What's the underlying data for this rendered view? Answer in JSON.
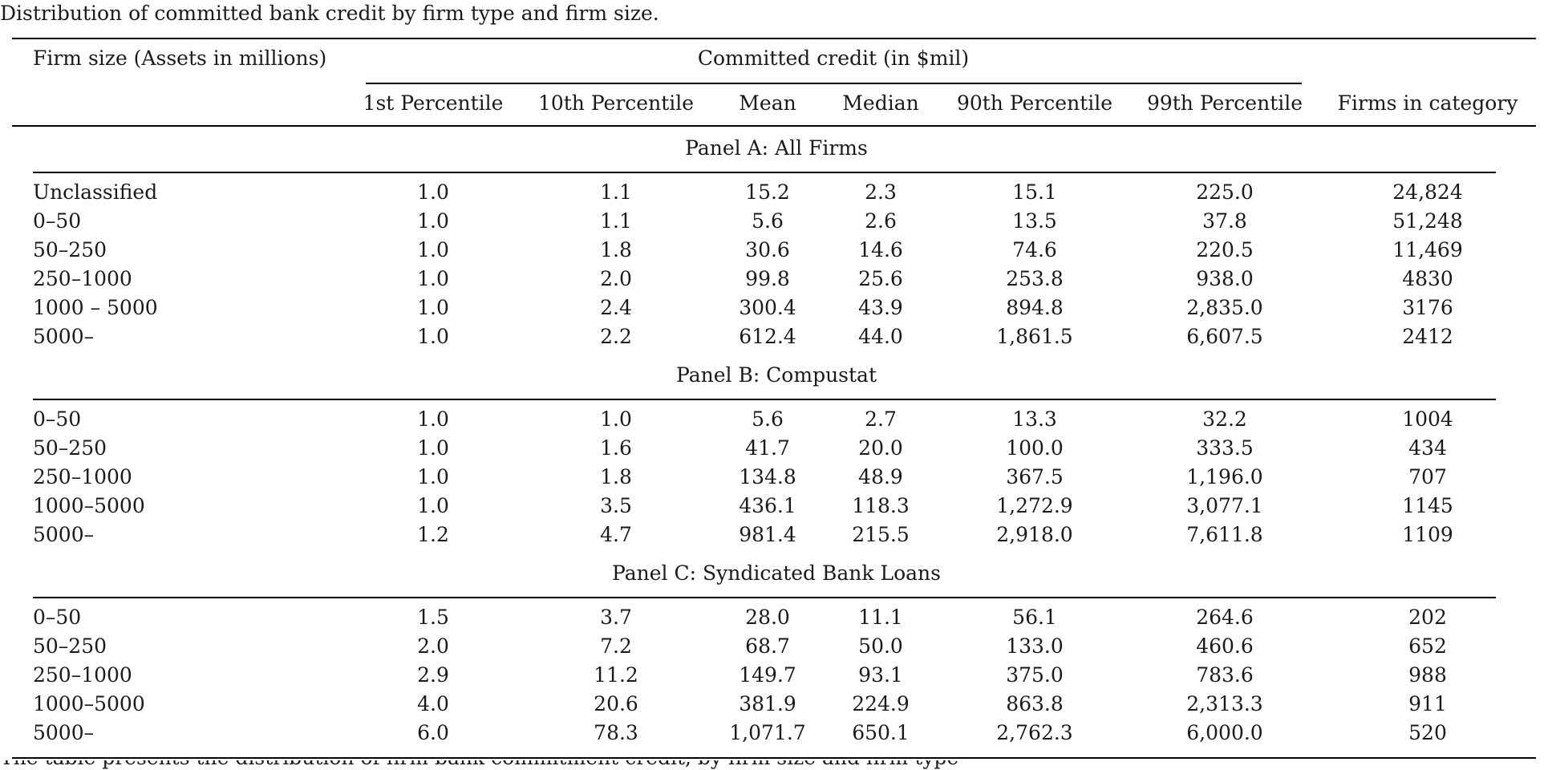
{
  "caption": "Distribution of committed bank credit by firm type and firm size.",
  "header": {
    "row_label": "Firm size (Assets in millions)",
    "group_label": "Committed credit (in $mil)",
    "columns": [
      "1st Percentile",
      "10th Percentile",
      "Mean",
      "Median",
      "90th Percentile",
      "99th Percentile",
      "Firms in category"
    ]
  },
  "panels": [
    {
      "title": "Panel A: All Firms",
      "rows": [
        [
          "Unclassified",
          "1.0",
          "1.1",
          "15.2",
          "2.3",
          "15.1",
          "225.0",
          "24,824"
        ],
        [
          "0–50",
          "1.0",
          "1.1",
          "5.6",
          "2.6",
          "13.5",
          "37.8",
          "51,248"
        ],
        [
          "50–250",
          "1.0",
          "1.8",
          "30.6",
          "14.6",
          "74.6",
          "220.5",
          "11,469"
        ],
        [
          "250–1000",
          "1.0",
          "2.0",
          "99.8",
          "25.6",
          "253.8",
          "938.0",
          "4830"
        ],
        [
          "1000 – 5000",
          "1.0",
          "2.4",
          "300.4",
          "43.9",
          "894.8",
          "2,835.0",
          "3176"
        ],
        [
          "5000–",
          "1.0",
          "2.2",
          "612.4",
          "44.0",
          "1,861.5",
          "6,607.5",
          "2412"
        ]
      ]
    },
    {
      "title": "Panel B: Compustat",
      "rows": [
        [
          "0–50",
          "1.0",
          "1.0",
          "5.6",
          "2.7",
          "13.3",
          "32.2",
          "1004"
        ],
        [
          "50–250",
          "1.0",
          "1.6",
          "41.7",
          "20.0",
          "100.0",
          "333.5",
          "434"
        ],
        [
          "250–1000",
          "1.0",
          "1.8",
          "134.8",
          "48.9",
          "367.5",
          "1,196.0",
          "707"
        ],
        [
          "1000–5000",
          "1.0",
          "3.5",
          "436.1",
          "118.3",
          "1,272.9",
          "3,077.1",
          "1145"
        ],
        [
          "5000–",
          "1.2",
          "4.7",
          "981.4",
          "215.5",
          "2,918.0",
          "7,611.8",
          "1109"
        ]
      ]
    },
    {
      "title": "Panel C: Syndicated Bank Loans",
      "rows": [
        [
          "0–50",
          "1.5",
          "3.7",
          "28.0",
          "11.1",
          "56.1",
          "264.6",
          "202"
        ],
        [
          "50–250",
          "2.0",
          "7.2",
          "68.7",
          "50.0",
          "133.0",
          "460.6",
          "652"
        ],
        [
          "250–1000",
          "2.9",
          "11.2",
          "149.7",
          "93.1",
          "375.0",
          "783.6",
          "988"
        ],
        [
          "1000–5000",
          "4.0",
          "20.6",
          "381.9",
          "224.9",
          "863.8",
          "2,313.3",
          "911"
        ],
        [
          "5000–",
          "6.0",
          "78.3",
          "1,071.7",
          "650.1",
          "2,762.3",
          "6,000.0",
          "520"
        ]
      ]
    }
  ],
  "footnote_fragment": "The table presents the distribution of firm bank commitment credit, by firm size and firm type"
}
